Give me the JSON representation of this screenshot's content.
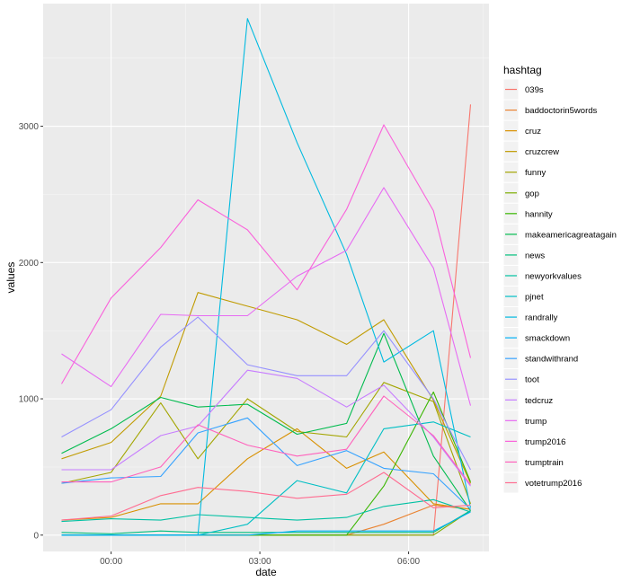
{
  "chart_data": {
    "type": "line",
    "title": "",
    "xlabel": "date",
    "ylabel": "values",
    "x": [
      "23:00",
      "00:00",
      "01:00",
      "01:45",
      "02:45",
      "03:45",
      "04:45",
      "05:30",
      "06:30",
      "07:15"
    ],
    "x_ticks": [
      "00:00",
      "03:00",
      "06:00"
    ],
    "y_ticks": [
      "0",
      "1000",
      "2000",
      "3000"
    ],
    "ylim": [
      -120,
      3900
    ],
    "grid": true,
    "legend_title": "hashtag",
    "legend_position": "right",
    "series": [
      {
        "name": "039s",
        "color": "#F8766D",
        "values": [
          0,
          0,
          0,
          0,
          0,
          0,
          0,
          0,
          0,
          3160
        ]
      },
      {
        "name": "baddoctorin5words",
        "color": "#EA8331",
        "values": [
          0,
          0,
          0,
          0,
          0,
          0,
          0,
          80,
          220,
          190
        ]
      },
      {
        "name": "cruz",
        "color": "#D89000",
        "values": [
          110,
          130,
          230,
          230,
          560,
          780,
          490,
          610,
          230,
          190
        ]
      },
      {
        "name": "cruzcrew",
        "color": "#C09B00",
        "values": [
          560,
          680,
          1020,
          1780,
          1680,
          1580,
          1400,
          1580,
          990,
          380
        ]
      },
      {
        "name": "funny",
        "color": "#A3A500",
        "values": [
          380,
          460,
          970,
          560,
          1000,
          760,
          720,
          1120,
          980,
          230
        ]
      },
      {
        "name": "gop",
        "color": "#7CAE00",
        "values": [
          0,
          0,
          0,
          0,
          0,
          0,
          0,
          0,
          0,
          180
        ]
      },
      {
        "name": "hannity",
        "color": "#39B600",
        "values": [
          0,
          0,
          0,
          0,
          0,
          0,
          0,
          360,
          1050,
          390
        ]
      },
      {
        "name": "makeamericagreatagain",
        "color": "#00BB4E",
        "values": [
          600,
          780,
          1010,
          940,
          960,
          740,
          820,
          1480,
          580,
          180
        ]
      },
      {
        "name": "news",
        "color": "#00BF7D",
        "values": [
          20,
          10,
          30,
          20,
          20,
          20,
          20,
          20,
          20,
          180
        ]
      },
      {
        "name": "newyorkvalues",
        "color": "#00C1A3",
        "values": [
          100,
          120,
          110,
          150,
          130,
          110,
          130,
          210,
          260,
          170
        ]
      },
      {
        "name": "pjnet",
        "color": "#00BFC4",
        "values": [
          0,
          0,
          0,
          0,
          80,
          400,
          310,
          780,
          830,
          720
        ]
      },
      {
        "name": "randrally",
        "color": "#00BAE0",
        "values": [
          0,
          0,
          0,
          0,
          3790,
          2880,
          2060,
          1270,
          1500,
          200
        ]
      },
      {
        "name": "smackdown",
        "color": "#00B0F6",
        "values": [
          0,
          0,
          0,
          0,
          0,
          30,
          30,
          30,
          30,
          170
        ]
      },
      {
        "name": "standwithrand",
        "color": "#35A2FF",
        "values": [
          380,
          420,
          430,
          750,
          860,
          510,
          620,
          490,
          450,
          190
        ]
      },
      {
        "name": "toot",
        "color": "#9590FF",
        "values": [
          720,
          920,
          1380,
          1600,
          1250,
          1170,
          1170,
          1500,
          1000,
          480
        ]
      },
      {
        "name": "tedcruz",
        "color": "#C77CFF",
        "values": [
          480,
          480,
          730,
          800,
          1210,
          1150,
          940,
          1100,
          720,
          360
        ]
      },
      {
        "name": "trump",
        "color": "#E76BF3",
        "values": [
          1330,
          1090,
          1620,
          1610,
          1610,
          1900,
          2090,
          2550,
          1960,
          950
        ]
      },
      {
        "name": "trump2016",
        "color": "#FA62DB",
        "values": [
          1110,
          1740,
          2110,
          2460,
          2240,
          1800,
          2390,
          3010,
          2380,
          1300
        ]
      },
      {
        "name": "trumptrain",
        "color": "#FF62BC",
        "values": [
          390,
          390,
          500,
          810,
          660,
          580,
          630,
          1020,
          730,
          370
        ]
      },
      {
        "name": "votetrump2016",
        "color": "#FF6C91",
        "values": [
          110,
          140,
          290,
          350,
          320,
          270,
          300,
          460,
          200,
          220
        ]
      }
    ]
  }
}
